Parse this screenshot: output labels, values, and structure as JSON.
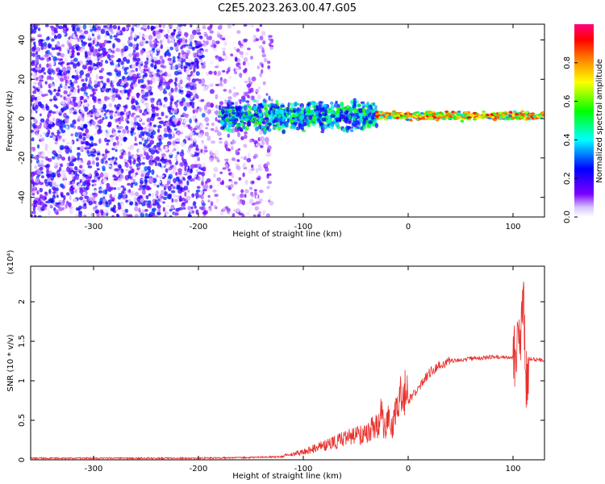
{
  "chart_data": [
    {
      "type": "heatmap",
      "title": "C2E5.2023.263.00.47.G05",
      "xlabel": "Height of straight line (km)",
      "ylabel": "Frequency (Hz)",
      "xlim": [
        -360,
        130
      ],
      "ylim": [
        -50,
        48
      ],
      "xticks": [
        -300,
        -200,
        -100,
        0,
        100
      ],
      "yticks": [
        -40,
        -20,
        0,
        20,
        40
      ],
      "colorbar": {
        "label": "Normalized spectral amplitude",
        "range": [
          0.0,
          1.0
        ],
        "ticks": [
          0.0,
          0.2,
          0.4,
          0.6,
          0.8
        ],
        "colors": [
          "#ffffff",
          "#7b00ff",
          "#0000ff",
          "#00ffff",
          "#00ff00",
          "#ffff00",
          "#ff8000",
          "#ff0000",
          "#ff0080"
        ]
      },
      "regions": [
        {
          "x": [
            -360,
            -195
          ],
          "y": [
            -50,
            48
          ],
          "amplitude": [
            0.0,
            0.3
          ]
        },
        {
          "x": [
            -195,
            -130
          ],
          "y": [
            -50,
            48
          ],
          "amplitude": [
            0.0,
            0.15
          ]
        },
        {
          "x": [
            -180,
            -30
          ],
          "y": [
            -10,
            10
          ],
          "amplitude": [
            0.2,
            0.6
          ]
        },
        {
          "x": [
            -30,
            130
          ],
          "y": [
            -3,
            3
          ],
          "amplitude": [
            0.3,
            0.95
          ]
        }
      ]
    },
    {
      "type": "line",
      "xlabel": "Height of straight line (km)",
      "ylabel": "SNR (10 * v/v)",
      "y_multiplier": "(x10⁴)",
      "xlim": [
        -360,
        130
      ],
      "ylim": [
        0,
        2.45
      ],
      "xticks": [
        -300,
        -200,
        -100,
        0,
        100
      ],
      "yticks": [
        0.0,
        0.5,
        1.0,
        1.5,
        2.0
      ],
      "color": "#e8302c",
      "series": [
        {
          "x": [
            -360,
            -300,
            -250,
            -200,
            -150,
            -120,
            -100,
            -80,
            -60,
            -40,
            -30,
            -25,
            -22,
            -18,
            -15,
            -10,
            0,
            10,
            20,
            30,
            40,
            60,
            80,
            90,
            100,
            105,
            108,
            110,
            112,
            115,
            120,
            130
          ],
          "y": [
            0.02,
            0.02,
            0.02,
            0.02,
            0.03,
            0.04,
            0.08,
            0.15,
            0.22,
            0.28,
            0.35,
            0.5,
            0.3,
            0.45,
            0.3,
            0.6,
            0.75,
            0.9,
            1.1,
            1.2,
            1.25,
            1.28,
            1.3,
            1.3,
            1.3,
            1.35,
            1.6,
            2.3,
            1.0,
            1.28,
            1.27,
            1.26
          ]
        }
      ]
    }
  ]
}
